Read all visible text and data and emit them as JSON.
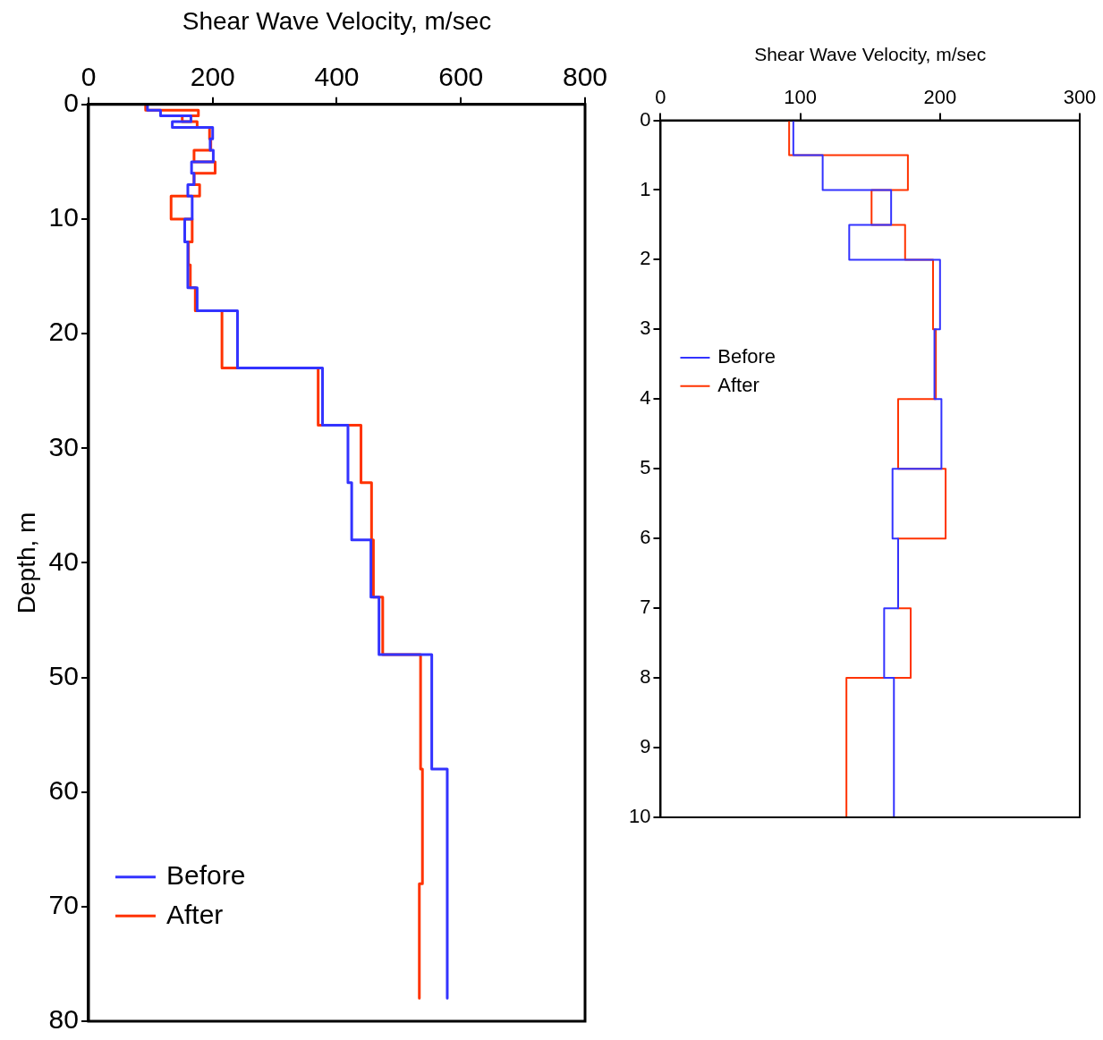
{
  "chart_data": [
    {
      "type": "line",
      "xlabel": "Shear Wave Velocity, m/sec",
      "ylabel": "Depth, m",
      "xlim": [
        0,
        800
      ],
      "xticks": [
        0,
        200,
        400,
        600,
        800
      ],
      "ylim": [
        80,
        0
      ],
      "yticks": [
        0,
        10,
        20,
        30,
        40,
        50,
        60,
        70,
        80
      ],
      "grid": false,
      "legend": "bottom left",
      "marker": "none",
      "line_style": "solid",
      "series": [
        {
          "name": "Before",
          "color": "#3333ff",
          "x": [
            95,
            95,
            116,
            116,
            165,
            165,
            135,
            135,
            200,
            200,
            196,
            196,
            201,
            201,
            166,
            166,
            170,
            170,
            160,
            160,
            167,
            167,
            155,
            155,
            160,
            160,
            175,
            175,
            240,
            240,
            377,
            377,
            418,
            418,
            424,
            424,
            455,
            455,
            468,
            468,
            553,
            553,
            578,
            578
          ],
          "values": [
            0,
            0.5,
            0.5,
            1,
            1,
            1.5,
            1.5,
            2,
            2,
            3,
            3,
            4,
            4,
            5,
            5,
            6,
            6,
            7,
            7,
            8,
            8,
            10,
            10,
            12,
            12,
            16,
            16,
            18,
            18,
            23,
            23,
            28,
            28,
            33,
            33,
            38,
            38,
            43,
            43,
            48,
            48,
            58,
            58,
            78
          ]
        },
        {
          "name": "After",
          "color": "#ff3300",
          "x": [
            92,
            92,
            177,
            177,
            151,
            151,
            175,
            175,
            195,
            195,
            197,
            197,
            170,
            170,
            204,
            204,
            170,
            170,
            179,
            179,
            133,
            133,
            167,
            167,
            161,
            161,
            164,
            164,
            172,
            172,
            215,
            215,
            370,
            370,
            439,
            439,
            456,
            456,
            459,
            459,
            474,
            474,
            535,
            535,
            538,
            538,
            533,
            533
          ],
          "values": [
            0,
            0.5,
            0.5,
            1,
            1,
            1.5,
            1.5,
            2,
            2,
            3,
            3,
            4,
            4,
            5,
            5,
            6,
            6,
            7,
            7,
            8,
            8,
            10,
            10,
            12,
            12,
            14,
            14,
            16,
            16,
            18,
            18,
            23,
            23,
            28,
            28,
            33,
            33,
            38,
            38,
            43,
            43,
            48,
            48,
            58,
            58,
            68,
            68,
            78
          ]
        }
      ]
    },
    {
      "type": "line",
      "xlabel": "Shear Wave Velocity, m/sec",
      "xlim": [
        0,
        300
      ],
      "xticks": [
        0,
        100,
        200,
        300
      ],
      "ylim": [
        10,
        0
      ],
      "yticks": [
        0,
        1,
        2,
        3,
        4,
        5,
        6,
        7,
        8,
        9,
        10
      ],
      "grid": false,
      "legend": "left",
      "marker": "none",
      "line_style": "solid",
      "series": [
        {
          "name": "Before",
          "color": "#3333ff",
          "x": [
            95,
            95,
            116,
            116,
            165,
            165,
            135,
            135,
            200,
            200,
            196,
            196,
            201,
            201,
            166,
            166,
            170,
            170,
            160,
            160,
            167,
            167
          ],
          "values": [
            0,
            0.5,
            0.5,
            1,
            1,
            1.5,
            1.5,
            2,
            2,
            3,
            3,
            4,
            4,
            5,
            5,
            6,
            6,
            7,
            7,
            8,
            8,
            10
          ]
        },
        {
          "name": "After",
          "color": "#ff3300",
          "x": [
            92,
            92,
            177,
            177,
            151,
            151,
            175,
            175,
            195,
            195,
            197,
            197,
            170,
            170,
            204,
            204,
            170,
            170,
            179,
            179,
            133,
            133
          ],
          "values": [
            0,
            0.5,
            0.5,
            1,
            1,
            1.5,
            1.5,
            2,
            2,
            3,
            3,
            4,
            4,
            5,
            5,
            6,
            6,
            7,
            7,
            8,
            8,
            10
          ]
        }
      ]
    }
  ]
}
